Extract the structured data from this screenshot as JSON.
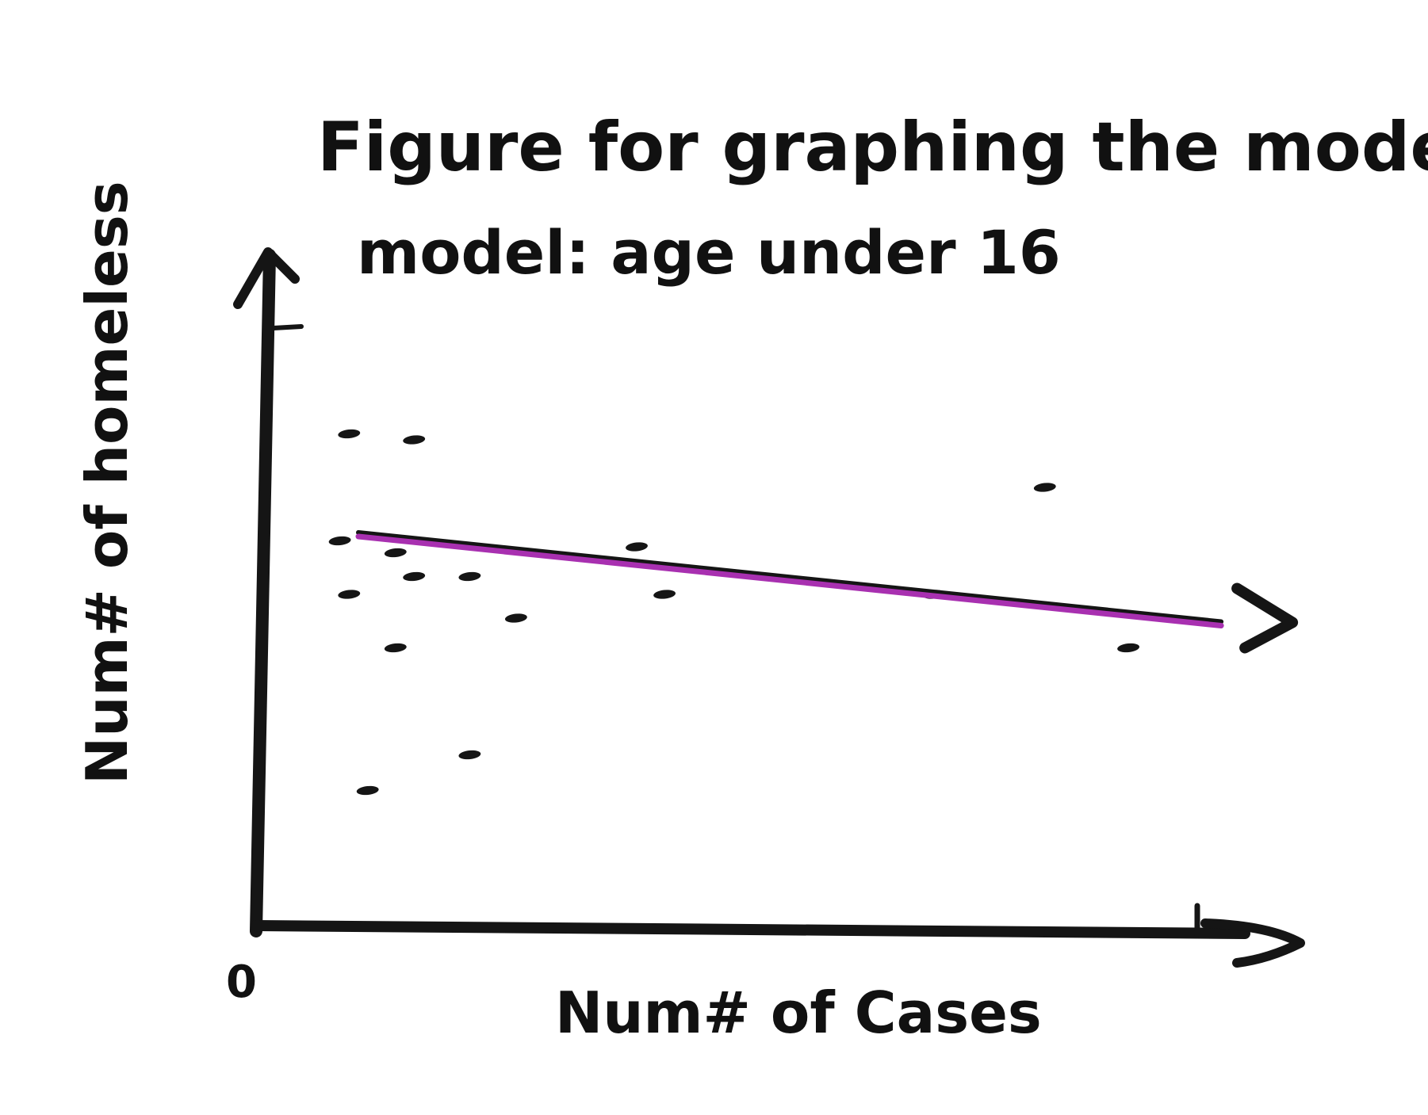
{
  "chart_data": {
    "type": "scatter",
    "title": "Figure for graphing the model",
    "subtitle": "model: age under 16",
    "xlabel": "Num# of Cases",
    "ylabel": "Num# of homeless",
    "origin_label": "0",
    "xlim": [
      0,
      10
    ],
    "ylim": [
      0,
      10
    ],
    "points": [
      {
        "x": 0.9,
        "y": 8.3
      },
      {
        "x": 1.6,
        "y": 8.2
      },
      {
        "x": 0.8,
        "y": 6.5
      },
      {
        "x": 1.4,
        "y": 6.3
      },
      {
        "x": 4.0,
        "y": 6.4
      },
      {
        "x": 8.4,
        "y": 7.4
      },
      {
        "x": 1.6,
        "y": 5.9
      },
      {
        "x": 2.2,
        "y": 5.9
      },
      {
        "x": 0.9,
        "y": 5.6
      },
      {
        "x": 4.3,
        "y": 5.6
      },
      {
        "x": 7.2,
        "y": 5.6
      },
      {
        "x": 2.7,
        "y": 5.2
      },
      {
        "x": 1.4,
        "y": 4.7
      },
      {
        "x": 9.3,
        "y": 4.7
      },
      {
        "x": 2.2,
        "y": 2.9
      },
      {
        "x": 1.1,
        "y": 2.3
      }
    ],
    "fit_line": {
      "x": [
        1.0,
        10.3
      ],
      "y": [
        6.6,
        5.1
      ],
      "color": "#a830b0"
    },
    "grid": false,
    "legend": "none"
  }
}
